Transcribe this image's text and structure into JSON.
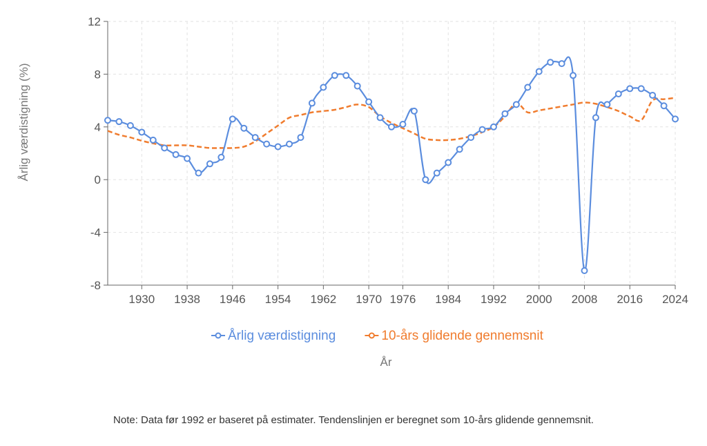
{
  "colors": {
    "primary": "#5b8dde",
    "secondary": "#f07c2e"
  },
  "note": "Note: Data før 1992 er baseret på estimater. Tendenslinjen er beregnet som 10-års glidende gennemsnit.",
  "chart_data": {
    "type": "line",
    "xlabel": "År",
    "ylabel": "Årlig værdistigning (%)",
    "xlim": [
      1924,
      2024
    ],
    "ylim": [
      -8,
      12
    ],
    "x_ticks": [
      1930,
      1938,
      1946,
      1954,
      1962,
      1970,
      1976,
      1984,
      1992,
      2000,
      2008,
      2016,
      2024
    ],
    "y_ticks": [
      -8,
      -4,
      0,
      4,
      8,
      12
    ],
    "grid": true,
    "legend_position": "bottom",
    "series": [
      {
        "name": "Årlig værdistigning",
        "color": "#5b8dde",
        "style": "solid",
        "markers": true,
        "x": [
          1924,
          1926,
          1928,
          1930,
          1932,
          1934,
          1936,
          1938,
          1940,
          1942,
          1944,
          1946,
          1948,
          1950,
          1952,
          1954,
          1956,
          1958,
          1960,
          1962,
          1964,
          1966,
          1968,
          1970,
          1972,
          1974,
          1976,
          1978,
          1980,
          1982,
          1984,
          1986,
          1988,
          1990,
          1992,
          1994,
          1996,
          1998,
          2000,
          2002,
          2004,
          2006,
          2008,
          2010,
          2012,
          2014,
          2016,
          2018,
          2020,
          2022,
          2024
        ],
        "values": [
          4.5,
          4.4,
          4.1,
          3.6,
          3.0,
          2.4,
          1.9,
          1.6,
          0.5,
          1.2,
          1.7,
          4.6,
          3.9,
          3.2,
          2.7,
          2.5,
          2.7,
          3.2,
          5.8,
          7.0,
          7.9,
          7.9,
          7.1,
          5.9,
          4.7,
          4.0,
          4.2,
          5.2,
          0.0,
          0.5,
          1.3,
          2.3,
          3.2,
          3.8,
          4.0,
          5.0,
          5.7,
          7.0,
          8.2,
          8.9,
          8.8,
          7.9,
          -6.9,
          4.7,
          5.7,
          6.5,
          6.9,
          6.9,
          6.4,
          5.6,
          4.6
        ]
      },
      {
        "name": "10-års glidende gennemsnit",
        "color": "#f07c2e",
        "style": "dashed",
        "markers": false,
        "x": [
          1924,
          1926,
          1928,
          1930,
          1932,
          1934,
          1936,
          1938,
          1940,
          1942,
          1944,
          1946,
          1948,
          1950,
          1952,
          1954,
          1956,
          1958,
          1960,
          1962,
          1964,
          1966,
          1968,
          1970,
          1972,
          1974,
          1976,
          1978,
          1980,
          1982,
          1984,
          1986,
          1988,
          1990,
          1992,
          1994,
          1996,
          1998,
          2000,
          2002,
          2004,
          2006,
          2008,
          2010,
          2012,
          2014,
          2016,
          2018,
          2020,
          2022,
          2024
        ],
        "values": [
          3.7,
          3.4,
          3.2,
          2.95,
          2.75,
          2.6,
          2.6,
          2.6,
          2.5,
          2.4,
          2.4,
          2.4,
          2.5,
          2.9,
          3.5,
          4.1,
          4.7,
          4.9,
          5.1,
          5.2,
          5.3,
          5.5,
          5.7,
          5.5,
          4.8,
          4.3,
          3.9,
          3.5,
          3.1,
          3.0,
          3.0,
          3.1,
          3.3,
          3.6,
          4.0,
          4.8,
          5.8,
          5.1,
          5.25,
          5.4,
          5.55,
          5.7,
          5.85,
          5.75,
          5.5,
          5.2,
          4.8,
          4.5,
          6.0,
          6.1,
          6.2
        ]
      }
    ]
  }
}
